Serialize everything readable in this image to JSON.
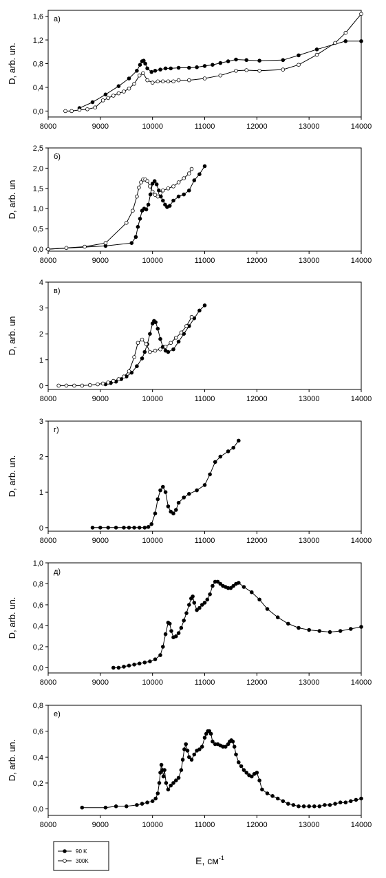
{
  "figure": {
    "xlabel": "E, см",
    "xlabel_sup": "-1",
    "legend": [
      {
        "label": "90 K",
        "marker": "filled"
      },
      {
        "label": "300K",
        "marker": "open"
      }
    ]
  },
  "chart_data": [
    {
      "type": "line",
      "panel": "a)",
      "ylabel": "D, arb. un.",
      "xlim": [
        8000,
        14000
      ],
      "ylim": [
        -0.1,
        1.7
      ],
      "xticks": [
        8000,
        9000,
        10000,
        11000,
        12000,
        13000,
        14000
      ],
      "yticks": [
        0.0,
        0.4,
        0.8,
        1.2,
        1.6
      ],
      "ytick_labels": [
        "0,0",
        "0,4",
        "0,8",
        "1,2",
        "1,6"
      ],
      "series": [
        {
          "name": "90 K",
          "marker": "filled",
          "x": [
            8600,
            8850,
            9100,
            9350,
            9550,
            9700,
            9760,
            9800,
            9830,
            9860,
            9900,
            9980,
            10050,
            10150,
            10250,
            10350,
            10500,
            10700,
            10850,
            11000,
            11150,
            11300,
            11450,
            11600,
            11800,
            12050,
            12500,
            12800,
            13150,
            13700,
            14000
          ],
          "y": [
            0.05,
            0.15,
            0.28,
            0.42,
            0.55,
            0.68,
            0.78,
            0.84,
            0.85,
            0.8,
            0.72,
            0.66,
            0.68,
            0.7,
            0.72,
            0.72,
            0.73,
            0.73,
            0.74,
            0.76,
            0.78,
            0.81,
            0.84,
            0.87,
            0.86,
            0.85,
            0.86,
            0.94,
            1.04,
            1.18,
            1.18
          ]
        },
        {
          "name": "300K",
          "marker": "open",
          "x": [
            8330,
            8450,
            8600,
            8750,
            8900,
            9050,
            9150,
            9250,
            9350,
            9450,
            9550,
            9650,
            9750,
            9820,
            9900,
            10000,
            10100,
            10200,
            10300,
            10400,
            10500,
            10700,
            11000,
            11300,
            11600,
            11800,
            12050,
            12500,
            12800,
            13150,
            13500,
            13700,
            14000
          ],
          "y": [
            0.0,
            0.0,
            0.02,
            0.03,
            0.06,
            0.18,
            0.22,
            0.26,
            0.3,
            0.33,
            0.38,
            0.46,
            0.6,
            0.64,
            0.52,
            0.48,
            0.5,
            0.5,
            0.5,
            0.5,
            0.52,
            0.52,
            0.55,
            0.6,
            0.68,
            0.69,
            0.68,
            0.7,
            0.78,
            0.95,
            1.15,
            1.32,
            1.64
          ]
        }
      ]
    },
    {
      "type": "line",
      "panel": "б)",
      "ylabel": "D, arb. un",
      "xlim": [
        8000,
        14000
      ],
      "ylim": [
        -0.05,
        2.5
      ],
      "xticks": [
        8000,
        9000,
        10000,
        11000,
        12000,
        13000,
        14000
      ],
      "yticks": [
        0.0,
        0.5,
        1.0,
        1.5,
        2.0,
        2.5
      ],
      "ytick_labels": [
        "0,0",
        "0,5",
        "1,0",
        "1,5",
        "2,0",
        "2,5"
      ],
      "series": [
        {
          "name": "90 K",
          "marker": "filled",
          "x": [
            8000,
            9100,
            9600,
            9680,
            9720,
            9760,
            9800,
            9840,
            9880,
            9920,
            9960,
            10000,
            10040,
            10080,
            10120,
            10160,
            10200,
            10240,
            10280,
            10330,
            10400,
            10500,
            10600,
            10700,
            10800,
            10900,
            11000
          ],
          "y": [
            0.0,
            0.08,
            0.15,
            0.3,
            0.55,
            0.75,
            0.95,
            1.0,
            0.98,
            1.1,
            1.35,
            1.62,
            1.68,
            1.6,
            1.45,
            1.3,
            1.2,
            1.1,
            1.04,
            1.07,
            1.2,
            1.3,
            1.35,
            1.45,
            1.7,
            1.85,
            2.05
          ]
        },
        {
          "name": "300K",
          "marker": "open",
          "x": [
            8000,
            8350,
            8700,
            9100,
            9500,
            9620,
            9700,
            9740,
            9780,
            9820,
            9860,
            9900,
            9950,
            10000,
            10050,
            10100,
            10150,
            10200,
            10300,
            10400,
            10500,
            10600,
            10700,
            10750
          ],
          "y": [
            0.0,
            0.03,
            0.06,
            0.15,
            0.65,
            0.95,
            1.3,
            1.52,
            1.65,
            1.72,
            1.72,
            1.68,
            1.55,
            1.42,
            1.34,
            1.3,
            1.38,
            1.45,
            1.5,
            1.55,
            1.65,
            1.75,
            1.87,
            1.98
          ]
        }
      ]
    },
    {
      "type": "line",
      "panel": "в)",
      "ylabel": "D, arb. un",
      "xlim": [
        8000,
        14000
      ],
      "ylim": [
        -0.15,
        4.0
      ],
      "xticks": [
        8000,
        9000,
        10000,
        11000,
        12000,
        13000,
        14000
      ],
      "yticks": [
        0,
        1,
        2,
        3,
        4
      ],
      "ytick_labels": [
        "0",
        "1",
        "2",
        "3",
        "4"
      ],
      "series": [
        {
          "name": "90 K",
          "marker": "filled",
          "x": [
            9100,
            9200,
            9300,
            9400,
            9500,
            9600,
            9700,
            9800,
            9850,
            9900,
            9950,
            10000,
            10030,
            10060,
            10100,
            10150,
            10200,
            10250,
            10300,
            10400,
            10500,
            10600,
            10700,
            10800,
            10900,
            11000
          ],
          "y": [
            0.05,
            0.1,
            0.15,
            0.25,
            0.35,
            0.5,
            0.75,
            1.05,
            1.3,
            1.6,
            2.0,
            2.4,
            2.5,
            2.45,
            2.2,
            1.8,
            1.5,
            1.35,
            1.3,
            1.4,
            1.7,
            2.0,
            2.3,
            2.6,
            2.9,
            3.1
          ]
        },
        {
          "name": "300K",
          "marker": "open",
          "x": [
            8200,
            8350,
            8500,
            8650,
            8800,
            8950,
            9050,
            9150,
            9250,
            9350,
            9450,
            9550,
            9650,
            9720,
            9800,
            9880,
            9950,
            10050,
            10150,
            10250,
            10350,
            10450,
            10550,
            10650,
            10750
          ],
          "y": [
            0.0,
            0.0,
            0.0,
            0.0,
            0.02,
            0.05,
            0.08,
            0.12,
            0.18,
            0.25,
            0.35,
            0.55,
            1.1,
            1.65,
            1.78,
            1.6,
            1.3,
            1.35,
            1.4,
            1.5,
            1.65,
            1.85,
            2.05,
            2.3,
            2.65
          ]
        }
      ]
    },
    {
      "type": "line",
      "panel": "г)",
      "ylabel": "D, arb. un.",
      "xlim": [
        8000,
        14000
      ],
      "ylim": [
        -0.1,
        3.0
      ],
      "xticks": [
        8000,
        9000,
        10000,
        11000,
        12000,
        13000,
        14000
      ],
      "yticks": [
        0,
        1,
        2,
        3
      ],
      "ytick_labels": [
        "0",
        "1",
        "2",
        "3"
      ],
      "series": [
        {
          "name": "90 K",
          "marker": "filled",
          "x": [
            8850,
            9000,
            9150,
            9300,
            9450,
            9550,
            9650,
            9750,
            9850,
            9920,
            9980,
            10050,
            10100,
            10150,
            10200,
            10250,
            10300,
            10350,
            10400,
            10450,
            10500,
            10600,
            10700,
            10850,
            11000,
            11100,
            11200,
            11300,
            11450,
            11550,
            11650
          ],
          "y": [
            0.0,
            0.0,
            0.0,
            0.0,
            0.0,
            0.0,
            0.0,
            0.0,
            0.0,
            0.02,
            0.1,
            0.4,
            0.8,
            1.05,
            1.15,
            1.0,
            0.6,
            0.45,
            0.4,
            0.5,
            0.7,
            0.85,
            0.95,
            1.05,
            1.2,
            1.5,
            1.85,
            2.0,
            2.15,
            2.25,
            2.45
          ]
        }
      ]
    },
    {
      "type": "line",
      "panel": "д)",
      "ylabel": "D, arb. un.",
      "xlim": [
        8000,
        14000
      ],
      "ylim": [
        -0.05,
        1.0
      ],
      "xticks": [
        8000,
        9000,
        10000,
        11000,
        12000,
        13000,
        14000
      ],
      "yticks": [
        0.0,
        0.2,
        0.4,
        0.6,
        0.8,
        1.0
      ],
      "ytick_labels": [
        "0,0",
        "0,2",
        "0,4",
        "0,6",
        "0,8",
        "1,0"
      ],
      "series": [
        {
          "name": "90 K",
          "marker": "filled",
          "x": [
            9250,
            9350,
            9450,
            9550,
            9650,
            9750,
            9850,
            9950,
            10050,
            10150,
            10200,
            10250,
            10300,
            10330,
            10360,
            10400,
            10450,
            10500,
            10550,
            10600,
            10650,
            10700,
            10740,
            10770,
            10800,
            10850,
            10900,
            10950,
            11000,
            11050,
            11100,
            11150,
            11200,
            11250,
            11300,
            11350,
            11400,
            11450,
            11500,
            11550,
            11600,
            11650,
            11750,
            11900,
            12050,
            12200,
            12400,
            12600,
            12800,
            13000,
            13200,
            13400,
            13600,
            13800,
            14000
          ],
          "y": [
            0.0,
            0.0,
            0.01,
            0.02,
            0.03,
            0.04,
            0.05,
            0.06,
            0.08,
            0.12,
            0.2,
            0.32,
            0.43,
            0.42,
            0.35,
            0.29,
            0.3,
            0.33,
            0.38,
            0.45,
            0.52,
            0.6,
            0.66,
            0.68,
            0.62,
            0.55,
            0.57,
            0.6,
            0.62,
            0.65,
            0.7,
            0.78,
            0.82,
            0.82,
            0.8,
            0.78,
            0.77,
            0.76,
            0.76,
            0.78,
            0.8,
            0.81,
            0.77,
            0.72,
            0.65,
            0.56,
            0.48,
            0.42,
            0.38,
            0.36,
            0.35,
            0.34,
            0.35,
            0.37,
            0.39
          ]
        }
      ]
    },
    {
      "type": "line",
      "panel": "е)",
      "ylabel": "D, arb. un.",
      "xlim": [
        8000,
        14000
      ],
      "ylim": [
        -0.05,
        0.8
      ],
      "xticks": [
        8000,
        9000,
        10000,
        11000,
        12000,
        13000,
        14000
      ],
      "yticks": [
        0.0,
        0.2,
        0.4,
        0.6,
        0.8
      ],
      "ytick_labels": [
        "0,0",
        "0,2",
        "0,4",
        "0,6",
        "0,8"
      ],
      "series": [
        {
          "name": "90 K",
          "marker": "filled",
          "x": [
            8650,
            9100,
            9300,
            9500,
            9700,
            9800,
            9900,
            10000,
            10060,
            10100,
            10130,
            10150,
            10170,
            10190,
            10210,
            10230,
            10260,
            10300,
            10350,
            10400,
            10450,
            10500,
            10550,
            10580,
            10610,
            10640,
            10670,
            10700,
            10750,
            10800,
            10850,
            10900,
            10950,
            11000,
            11030,
            11060,
            11090,
            11120,
            11150,
            11200,
            11250,
            11300,
            11350,
            11400,
            11450,
            11480,
            11510,
            11540,
            11570,
            11600,
            11650,
            11700,
            11750,
            11800,
            11850,
            11900,
            11950,
            12000,
            12050,
            12100,
            12200,
            12300,
            12400,
            12500,
            12600,
            12700,
            12800,
            12900,
            13000,
            13100,
            13200,
            13300,
            13400,
            13500,
            13600,
            13700,
            13800,
            13900,
            14000
          ],
          "y": [
            0.01,
            0.01,
            0.02,
            0.02,
            0.03,
            0.04,
            0.05,
            0.06,
            0.08,
            0.12,
            0.2,
            0.28,
            0.34,
            0.3,
            0.25,
            0.3,
            0.2,
            0.15,
            0.18,
            0.2,
            0.22,
            0.24,
            0.3,
            0.38,
            0.46,
            0.5,
            0.45,
            0.4,
            0.38,
            0.42,
            0.45,
            0.46,
            0.48,
            0.55,
            0.58,
            0.6,
            0.6,
            0.58,
            0.52,
            0.5,
            0.5,
            0.49,
            0.48,
            0.48,
            0.5,
            0.52,
            0.53,
            0.52,
            0.48,
            0.42,
            0.36,
            0.33,
            0.3,
            0.28,
            0.26,
            0.25,
            0.27,
            0.28,
            0.22,
            0.15,
            0.12,
            0.1,
            0.08,
            0.06,
            0.04,
            0.03,
            0.02,
            0.02,
            0.02,
            0.02,
            0.02,
            0.03,
            0.03,
            0.04,
            0.05,
            0.05,
            0.06,
            0.07,
            0.08
          ]
        }
      ]
    }
  ]
}
